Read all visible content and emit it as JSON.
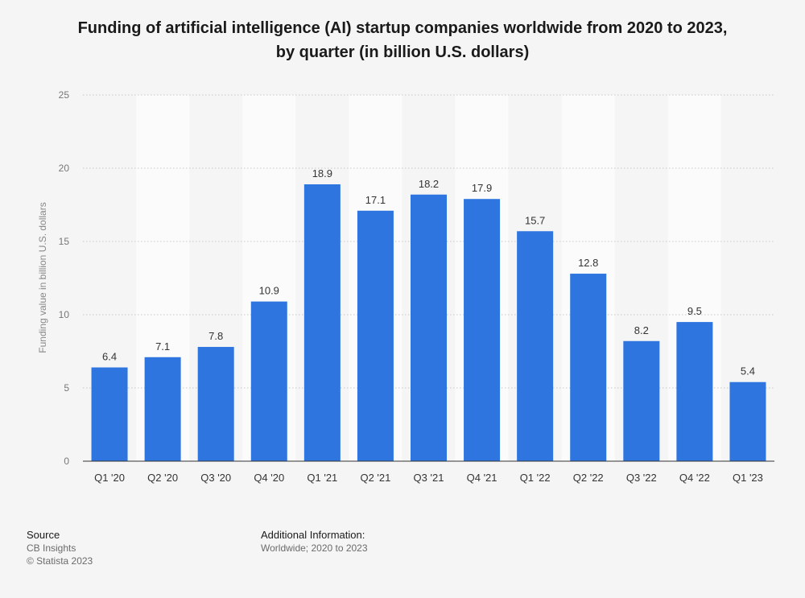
{
  "chart_data": {
    "type": "bar",
    "title_line1": "Funding of artificial intelligence (AI) startup companies worldwide from 2020 to 2023,",
    "title_line2": "by quarter (in billion U.S. dollars)",
    "ylabel": "Funding value in billion U.S. dollars",
    "xlabel": "",
    "categories": [
      "Q1 '20",
      "Q2 '20",
      "Q3 '20",
      "Q4 '20",
      "Q1 '21",
      "Q2 '21",
      "Q3 '21",
      "Q4 '21",
      "Q1 '22",
      "Q2 '22",
      "Q3 '22",
      "Q4 '22",
      "Q1 '23"
    ],
    "values": [
      6.4,
      7.1,
      7.8,
      10.9,
      18.9,
      17.1,
      18.2,
      17.9,
      15.7,
      12.8,
      8.2,
      9.5,
      5.4
    ],
    "ylim": [
      0,
      25
    ],
    "yticks": [
      0,
      5,
      10,
      15,
      20,
      25
    ],
    "grid": true,
    "bar_color": "#2e75e0"
  },
  "footer": {
    "source_heading": "Source",
    "source_lines": [
      "CB Insights",
      "© Statista 2023"
    ],
    "info_heading": "Additional Information:",
    "info_lines": [
      "Worldwide; 2020 to 2023"
    ]
  }
}
